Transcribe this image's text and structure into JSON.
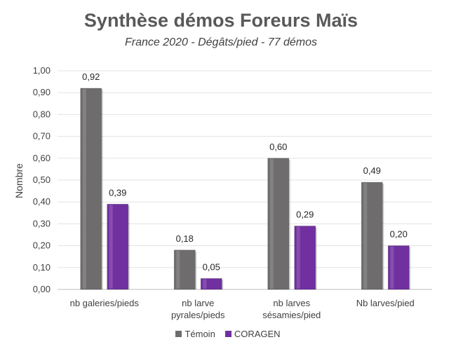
{
  "chart_data": {
    "type": "bar",
    "title": "Synthèse démos Foreurs Maïs",
    "subtitle": "France 2020 - Dégâts/pied - 77 démos",
    "ylabel": "Nombre",
    "xlabel": "",
    "ylim": [
      0,
      1.0
    ],
    "ytick_step": 0.1,
    "ytick_labels": [
      "0,00",
      "0,10",
      "0,20",
      "0,30",
      "0,40",
      "0,50",
      "0,60",
      "0,70",
      "0,80",
      "0,90",
      "1,00"
    ],
    "grid": true,
    "legend_position": "bottom",
    "categories": [
      [
        "nb galeries/pieds"
      ],
      [
        "nb larve",
        "pyrales/pieds"
      ],
      [
        "nb larves",
        "sésamies/pied"
      ],
      [
        "Nb larves/pied"
      ]
    ],
    "series": [
      {
        "name": "Témoin",
        "color": "#6e6c6c",
        "values": [
          0.92,
          0.18,
          0.6,
          0.49
        ],
        "labels": [
          "0,92",
          "0,18",
          "0,60",
          "0,49"
        ]
      },
      {
        "name": "CORAGEN",
        "color": "#7030a0",
        "values": [
          0.39,
          0.05,
          0.29,
          0.2
        ],
        "labels": [
          "0,39",
          "0,05",
          "0,29",
          "0,20"
        ]
      }
    ]
  }
}
